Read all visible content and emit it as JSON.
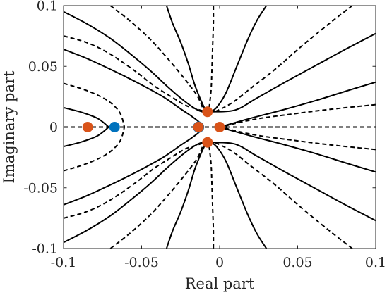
{
  "chart_data": {
    "type": "line",
    "title": "",
    "xlabel": "Real part",
    "ylabel": "Imaginary part",
    "xlim": [
      -0.1,
      0.1
    ],
    "ylim": [
      -0.1,
      0.1
    ],
    "xticks": [
      -0.1,
      -0.05,
      0,
      0.05,
      0.1
    ],
    "xtick_labels": [
      "-0.1",
      "-0.05",
      "0",
      "0.05",
      "0.1"
    ],
    "yticks": [
      -0.1,
      -0.05,
      0,
      0.05,
      0.1
    ],
    "ytick_labels": [
      "-0.1",
      "-0.05",
      "0",
      "0.05",
      "0.1"
    ],
    "grid": false,
    "legend": "none",
    "line_color": "#000000",
    "orange_color": "#D95319",
    "blue_color": "#0072BD",
    "solid_curves": [
      [
        [
          -0.1,
          0.016
        ],
        [
          -0.088,
          0.012
        ],
        [
          -0.078,
          0.007
        ],
        [
          -0.071,
          0.0
        ]
      ],
      [
        [
          -0.071,
          0.0
        ],
        [
          -0.078,
          -0.007
        ],
        [
          -0.088,
          -0.012
        ],
        [
          -0.1,
          -0.016
        ]
      ],
      [
        [
          -0.1,
          0.064
        ],
        [
          -0.086,
          0.057
        ],
        [
          -0.074,
          0.05
        ],
        [
          -0.061,
          0.042
        ],
        [
          -0.046,
          0.032
        ],
        [
          -0.035,
          0.024
        ],
        [
          -0.025,
          0.015
        ],
        [
          -0.018,
          0.009
        ],
        [
          -0.013,
          0.004
        ],
        [
          -0.011,
          0.0
        ]
      ],
      [
        [
          -0.1,
          -0.064
        ],
        [
          -0.086,
          -0.057
        ],
        [
          -0.074,
          -0.05
        ],
        [
          -0.061,
          -0.042
        ],
        [
          -0.046,
          -0.032
        ],
        [
          -0.035,
          -0.024
        ],
        [
          -0.025,
          -0.015
        ],
        [
          -0.018,
          -0.009
        ],
        [
          -0.013,
          -0.004
        ],
        [
          -0.011,
          0.0
        ]
      ],
      [
        [
          -0.1,
          0.095
        ],
        [
          -0.085,
          0.085
        ],
        [
          -0.07,
          0.073
        ],
        [
          -0.056,
          0.059
        ],
        [
          -0.044,
          0.046
        ],
        [
          -0.034,
          0.034
        ],
        [
          -0.026,
          0.025
        ],
        [
          -0.019,
          0.018
        ],
        [
          -0.014,
          0.014
        ],
        [
          -0.011,
          0.0126
        ]
      ],
      [
        [
          -0.1,
          -0.095
        ],
        [
          -0.085,
          -0.085
        ],
        [
          -0.07,
          -0.073
        ],
        [
          -0.056,
          -0.059
        ],
        [
          -0.044,
          -0.046
        ],
        [
          -0.034,
          -0.034
        ],
        [
          -0.026,
          -0.025
        ],
        [
          -0.019,
          -0.018
        ],
        [
          -0.014,
          -0.014
        ],
        [
          -0.011,
          -0.0126
        ]
      ],
      [
        [
          -0.034,
          0.1
        ],
        [
          -0.03,
          0.085
        ],
        [
          -0.025,
          0.07
        ],
        [
          -0.02,
          0.052
        ],
        [
          -0.016,
          0.035
        ],
        [
          -0.012,
          0.022
        ],
        [
          -0.0085,
          0.0126
        ]
      ],
      [
        [
          -0.034,
          -0.1
        ],
        [
          -0.03,
          -0.085
        ],
        [
          -0.025,
          -0.07
        ],
        [
          -0.02,
          -0.052
        ],
        [
          -0.016,
          -0.035
        ],
        [
          -0.012,
          -0.022
        ],
        [
          -0.0085,
          -0.0126
        ]
      ],
      [
        [
          0.03,
          0.1
        ],
        [
          0.024,
          0.088
        ],
        [
          0.018,
          0.072
        ],
        [
          0.011,
          0.05
        ],
        [
          0.004,
          0.028
        ],
        [
          -0.002,
          0.016
        ],
        [
          -0.006,
          0.0126
        ]
      ],
      [
        [
          0.03,
          -0.1
        ],
        [
          0.024,
          -0.088
        ],
        [
          0.018,
          -0.072
        ],
        [
          0.011,
          -0.05
        ],
        [
          0.004,
          -0.028
        ],
        [
          -0.002,
          -0.016
        ],
        [
          -0.006,
          -0.0126
        ]
      ],
      [
        [
          0.1,
          0.037
        ],
        [
          0.082,
          0.03
        ],
        [
          0.062,
          0.022
        ],
        [
          0.04,
          0.014
        ],
        [
          0.022,
          0.008
        ],
        [
          0.008,
          0.003
        ],
        [
          0.0,
          0.0
        ]
      ],
      [
        [
          0.1,
          -0.037
        ],
        [
          0.082,
          -0.03
        ],
        [
          0.062,
          -0.022
        ],
        [
          0.04,
          -0.014
        ],
        [
          0.022,
          -0.008
        ],
        [
          0.008,
          -0.003
        ],
        [
          0.0,
          0.0
        ]
      ],
      [
        [
          0.1,
          0.077
        ],
        [
          0.082,
          0.065
        ],
        [
          0.062,
          0.051
        ],
        [
          0.042,
          0.037
        ],
        [
          0.024,
          0.024
        ],
        [
          0.01,
          0.014
        ],
        [
          -0.005,
          0.0126
        ]
      ],
      [
        [
          0.1,
          -0.077
        ],
        [
          0.082,
          -0.065
        ],
        [
          0.062,
          -0.051
        ],
        [
          0.042,
          -0.037
        ],
        [
          0.024,
          -0.024
        ],
        [
          0.01,
          -0.014
        ],
        [
          -0.005,
          -0.0126
        ]
      ]
    ],
    "dashed_curves": [
      [
        [
          -0.1,
          0.0
        ],
        [
          0.1,
          0.0
        ]
      ],
      [
        [
          -0.1,
          0.036
        ],
        [
          -0.085,
          0.03
        ],
        [
          -0.072,
          0.022
        ],
        [
          -0.064,
          0.012
        ],
        [
          -0.061,
          0.0
        ]
      ],
      [
        [
          -0.1,
          -0.036
        ],
        [
          -0.085,
          -0.03
        ],
        [
          -0.072,
          -0.022
        ],
        [
          -0.064,
          -0.012
        ],
        [
          -0.061,
          0.0
        ]
      ],
      [
        [
          -0.1,
          0.075
        ],
        [
          -0.086,
          0.07
        ],
        [
          -0.074,
          0.063
        ],
        [
          -0.064,
          0.055
        ],
        [
          -0.053,
          0.045
        ],
        [
          -0.042,
          0.034
        ],
        [
          -0.031,
          0.025
        ],
        [
          -0.022,
          0.018
        ],
        [
          -0.015,
          0.015
        ],
        [
          -0.009,
          0.0126
        ]
      ],
      [
        [
          -0.1,
          -0.075
        ],
        [
          -0.086,
          -0.07
        ],
        [
          -0.074,
          -0.063
        ],
        [
          -0.064,
          -0.055
        ],
        [
          -0.053,
          -0.045
        ],
        [
          -0.042,
          -0.034
        ],
        [
          -0.031,
          -0.025
        ],
        [
          -0.022,
          -0.018
        ],
        [
          -0.015,
          -0.015
        ],
        [
          -0.009,
          -0.0126
        ]
      ],
      [
        [
          -0.07,
          0.1
        ],
        [
          -0.058,
          0.088
        ],
        [
          -0.045,
          0.073
        ],
        [
          -0.033,
          0.056
        ],
        [
          -0.022,
          0.039
        ],
        [
          -0.014,
          0.025
        ],
        [
          -0.01,
          0.0126
        ]
      ],
      [
        [
          -0.07,
          -0.1
        ],
        [
          -0.058,
          -0.088
        ],
        [
          -0.045,
          -0.073
        ],
        [
          -0.033,
          -0.056
        ],
        [
          -0.022,
          -0.039
        ],
        [
          -0.014,
          -0.025
        ],
        [
          -0.01,
          -0.0126
        ]
      ],
      [
        [
          -0.004,
          0.1
        ],
        [
          -0.004,
          0.085
        ],
        [
          -0.0045,
          0.065
        ],
        [
          -0.005,
          0.045
        ],
        [
          -0.0055,
          0.03
        ],
        [
          -0.007,
          0.0126
        ]
      ],
      [
        [
          -0.004,
          -0.1
        ],
        [
          -0.004,
          -0.085
        ],
        [
          -0.0045,
          -0.065
        ],
        [
          -0.005,
          -0.045
        ],
        [
          -0.0055,
          -0.03
        ],
        [
          -0.007,
          -0.0126
        ]
      ],
      [
        [
          0.085,
          0.1
        ],
        [
          0.07,
          0.085
        ],
        [
          0.052,
          0.066
        ],
        [
          0.035,
          0.047
        ],
        [
          0.02,
          0.032
        ],
        [
          0.008,
          0.02
        ],
        [
          -0.003,
          0.0126
        ]
      ],
      [
        [
          0.085,
          -0.1
        ],
        [
          0.07,
          -0.085
        ],
        [
          0.052,
          -0.066
        ],
        [
          0.035,
          -0.047
        ],
        [
          0.02,
          -0.032
        ],
        [
          0.008,
          -0.02
        ],
        [
          -0.003,
          -0.0126
        ]
      ],
      [
        [
          0.1,
          0.0185
        ],
        [
          0.07,
          0.0145
        ],
        [
          0.045,
          0.0105
        ],
        [
          0.025,
          0.007
        ],
        [
          0.01,
          0.003
        ],
        [
          0.001,
          0.0
        ]
      ],
      [
        [
          0.1,
          -0.0185
        ],
        [
          0.07,
          -0.0145
        ],
        [
          0.045,
          -0.0105
        ],
        [
          0.025,
          -0.007
        ],
        [
          0.01,
          -0.003
        ],
        [
          0.001,
          0.0
        ]
      ]
    ],
    "orange_points": [
      [
        -0.0845,
        0.0
      ],
      [
        -0.0135,
        0.0
      ],
      [
        0.0,
        0.0
      ],
      [
        -0.0078,
        0.0126
      ],
      [
        -0.0078,
        -0.0126
      ]
    ],
    "blue_points": [
      [
        -0.0673,
        0.0
      ]
    ],
    "blue_ring_point": [
      -0.0135,
      0.0
    ]
  }
}
